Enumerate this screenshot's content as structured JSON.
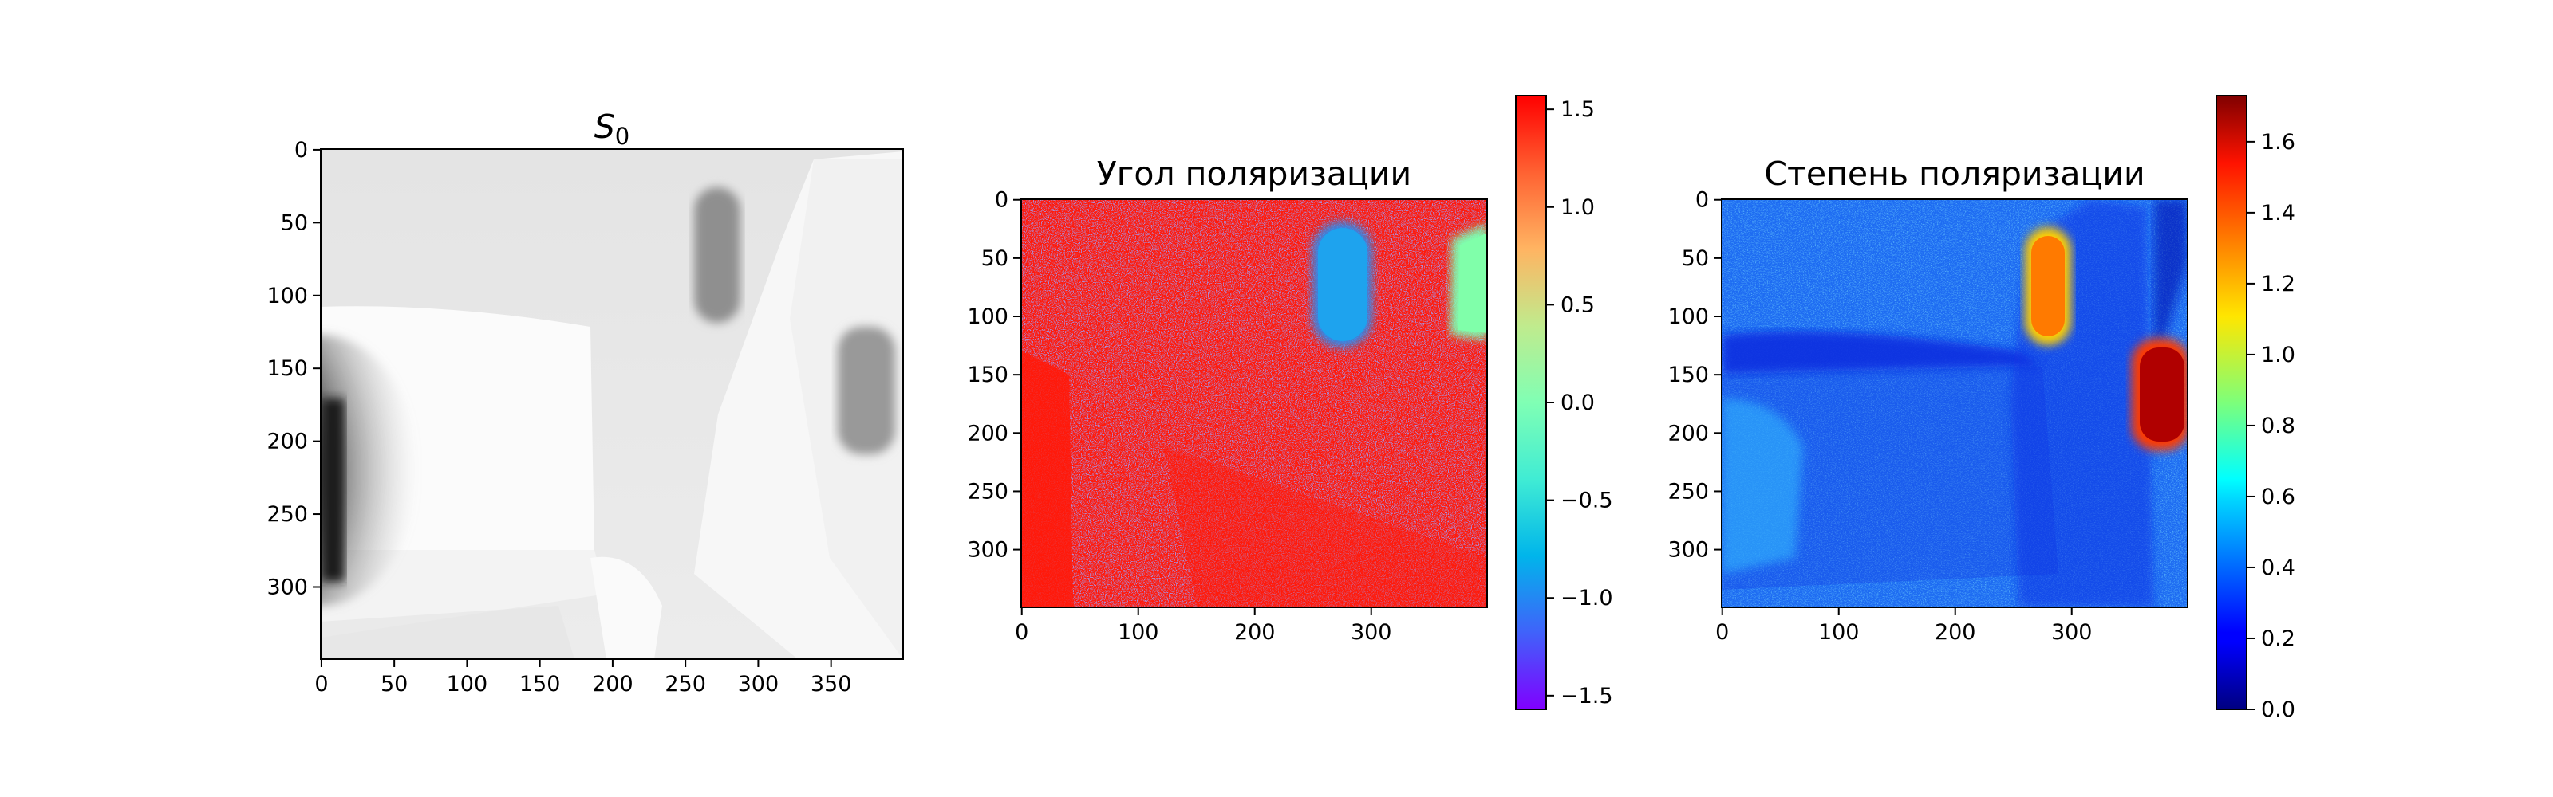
{
  "chart_data": [
    {
      "type": "heatmap",
      "title": "S",
      "title_subscript": "0",
      "colormap": "gray_r",
      "xlim": [
        0,
        399
      ],
      "ylim": [
        349,
        0
      ],
      "x_ticks": [
        0,
        50,
        100,
        150,
        200,
        250,
        300,
        350
      ],
      "y_ticks": [
        0,
        50,
        100,
        150,
        200,
        250,
        300
      ]
    },
    {
      "type": "heatmap",
      "title": "Угол поляризации",
      "colormap": "rainbow",
      "xlim": [
        0,
        399
      ],
      "ylim": [
        349,
        0
      ],
      "x_ticks": [
        0,
        100,
        200,
        300
      ],
      "y_ticks": [
        0,
        50,
        100,
        150,
        200,
        250,
        300
      ],
      "colorbar": {
        "range": [
          -1.57,
          1.57
        ],
        "ticks": [
          -1.5,
          -1.0,
          -0.5,
          0.0,
          0.5,
          1.0,
          1.5
        ],
        "tick_labels": [
          "−1.5",
          "−1.0",
          "−0.5",
          "0.0",
          "0.5",
          "1.0",
          "1.5"
        ]
      }
    },
    {
      "type": "heatmap",
      "title": "Степень поляризации",
      "colormap": "jet",
      "xlim": [
        0,
        399
      ],
      "ylim": [
        349,
        0
      ],
      "x_ticks": [
        0,
        100,
        200,
        300
      ],
      "y_ticks": [
        0,
        50,
        100,
        150,
        200,
        250,
        300
      ],
      "colorbar": {
        "range": [
          0.0,
          1.73
        ],
        "ticks": [
          0.0,
          0.2,
          0.4,
          0.6,
          0.8,
          1.0,
          1.2,
          1.4,
          1.6
        ],
        "tick_labels": [
          "0.0",
          "0.2",
          "0.4",
          "0.6",
          "0.8",
          "1.0",
          "1.2",
          "1.4",
          "1.6"
        ]
      }
    }
  ]
}
